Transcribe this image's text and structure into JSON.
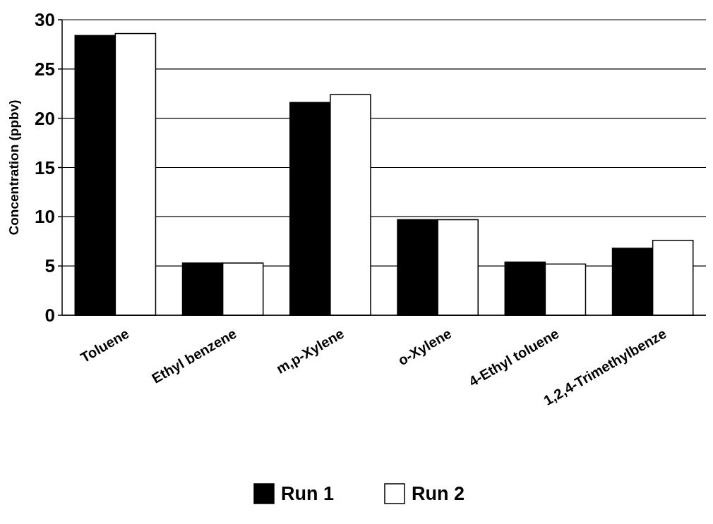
{
  "chart_data": {
    "type": "bar",
    "ylabel": "Concentration (ppbv)",
    "categories": [
      "Toluene",
      "Ethyl benzene",
      "m,p-Xylene",
      "o-Xylene",
      "4-Ethyl toluene",
      "1,2,4-Trimethylbenze"
    ],
    "series": [
      {
        "name": "Run 1",
        "color": "#000000",
        "values": [
          28.4,
          5.3,
          21.6,
          9.7,
          5.4,
          6.8
        ]
      },
      {
        "name": "Run 2",
        "color": "#ffffff",
        "values": [
          28.6,
          5.3,
          22.4,
          9.7,
          5.2,
          7.6
        ]
      }
    ],
    "ylim": [
      0,
      30
    ],
    "yticks": [
      0,
      5,
      10,
      15,
      20,
      25,
      30
    ],
    "grid": "y",
    "legend": "bottom"
  }
}
